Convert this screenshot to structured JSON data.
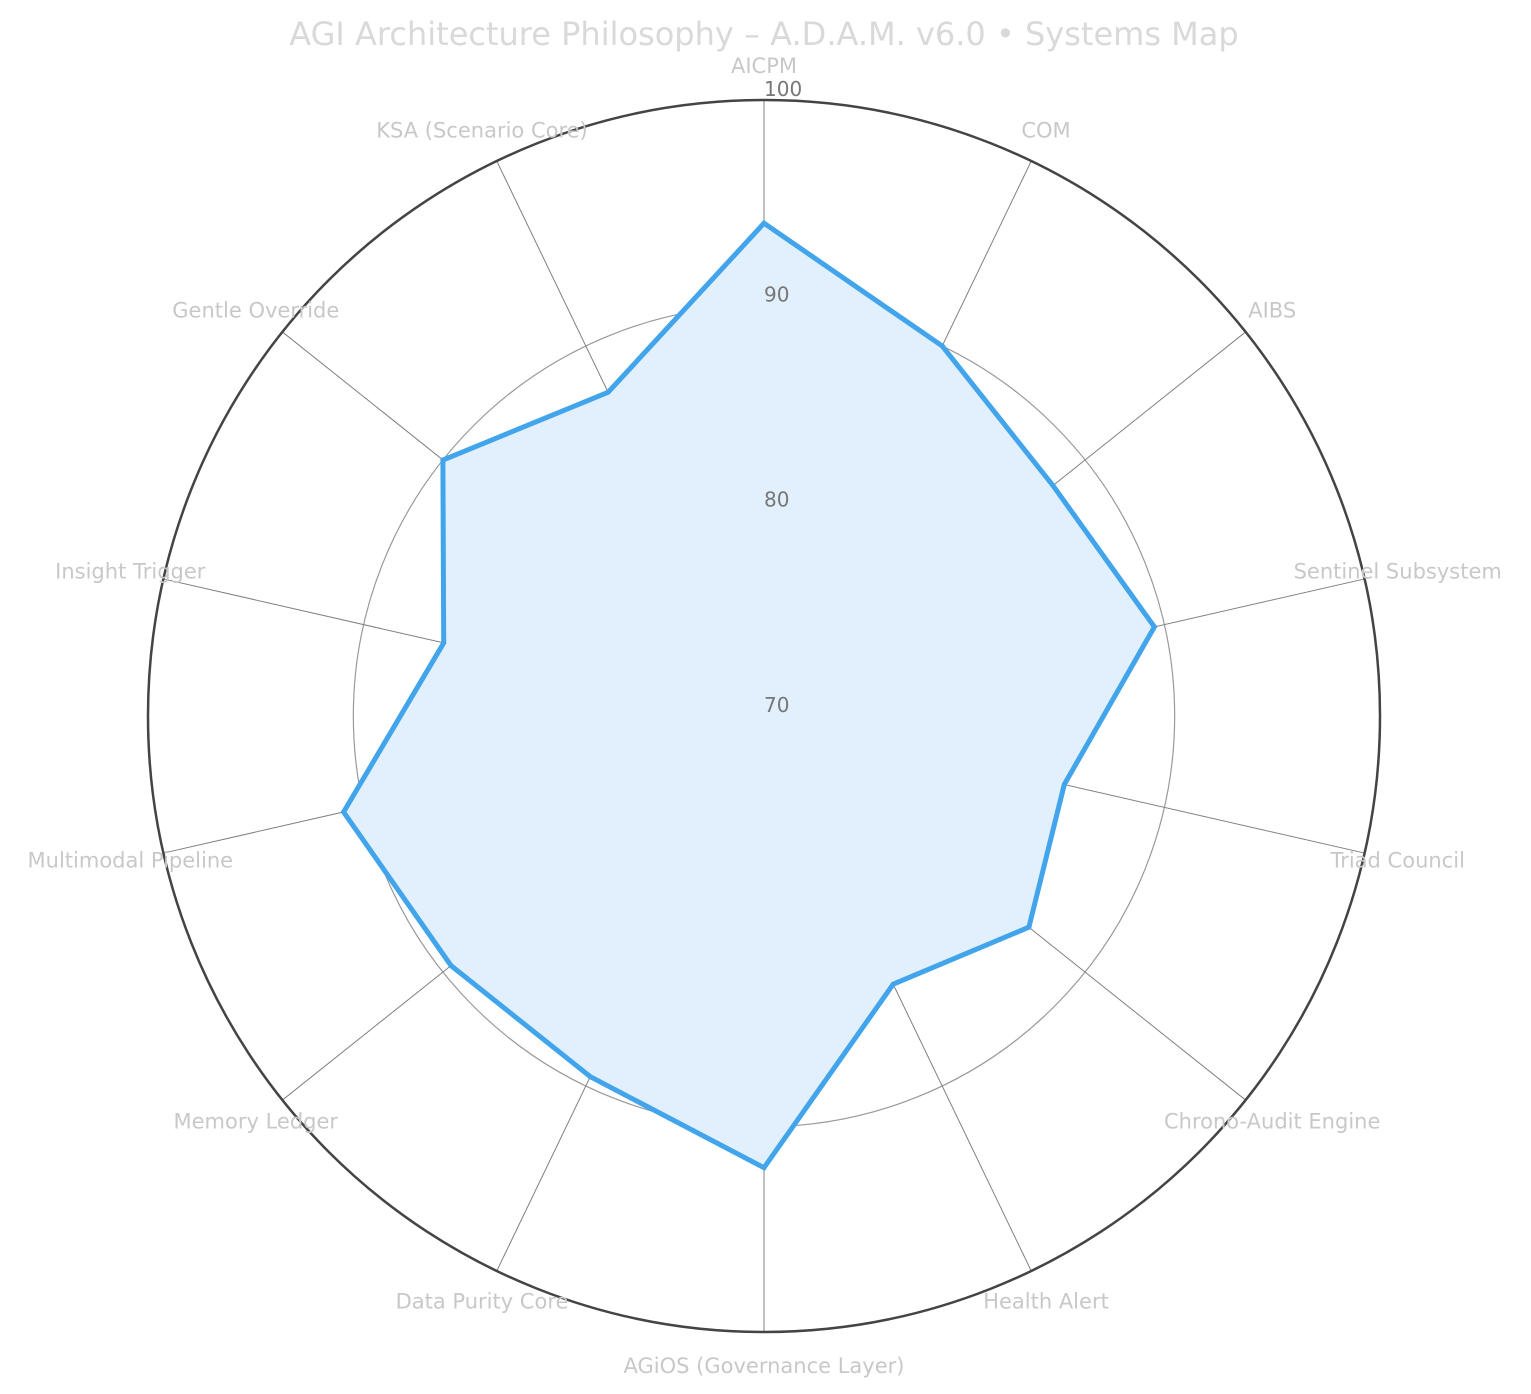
{
  "chart_data": {
    "type": "radar",
    "title": "AGI Architecture Philosophy – A.D.A.M. v6.0 • Systems Map",
    "axes": [
      "AICPM",
      "COM",
      "AIBS",
      "Sentinel Subsystem",
      "Triad Council",
      "Chrono-Audit Engine",
      "Health Alert",
      "AGiOS (Governance Layer)",
      "Data Purity Core",
      "Memory Ledger",
      "Multimodal Pipeline",
      "Insight Trigger",
      "Gentle Override",
      "KSA (Scenario Core)"
    ],
    "series": [
      {
        "values": [
          94,
          90,
          88,
          89.5,
          85,
          86.5,
          84.5,
          92,
          89.5,
          89.5,
          91,
          86,
          90,
          87.5
        ],
        "color": "#42a5ec",
        "fill": "#e1f0fc"
      }
    ],
    "rlim": [
      70,
      100
    ],
    "r_ticks": [
      "70",
      "80",
      "90",
      "100"
    ],
    "r_tick_values": [
      70,
      80,
      90,
      100
    ],
    "grid": true
  }
}
